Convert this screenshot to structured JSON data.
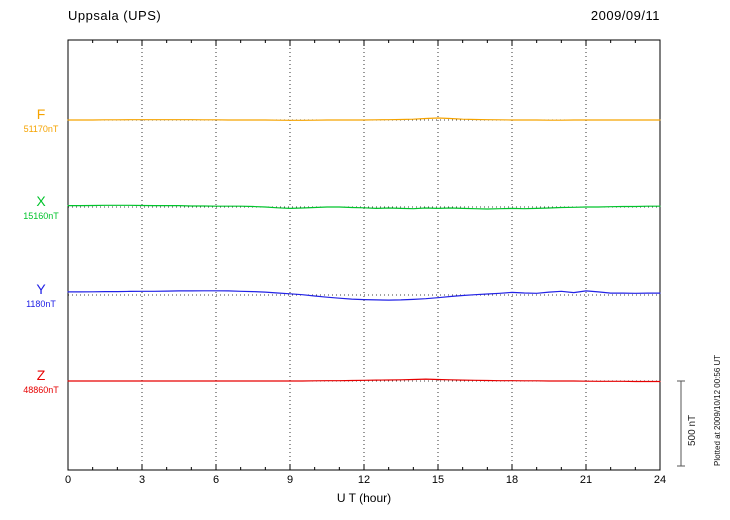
{
  "header": {
    "station": "Uppsala (UPS)",
    "date": "2009/09/11"
  },
  "xaxis": {
    "label": "U T (hour)",
    "ticks": [
      0,
      3,
      6,
      9,
      12,
      15,
      18,
      21,
      24
    ],
    "min": 0,
    "max": 24
  },
  "scale_bar": {
    "label": "500 nT",
    "nT": 500
  },
  "footer_note": "Plotted at 2009/10/12 00:56 UT",
  "chart_data": {
    "type": "line",
    "title": "Uppsala (UPS)",
    "date": "2009/09/11",
    "xlabel": "U T (hour)",
    "units": "nT deviation from channel baseline",
    "x_range": [
      0,
      24
    ],
    "grid": "dotted vertical lines every 3 hours; dotted horizontal baseline per channel",
    "x": [
      0,
      0.5,
      1,
      1.5,
      2,
      2.5,
      3,
      3.5,
      4,
      4.5,
      5,
      5.5,
      6,
      6.5,
      7,
      7.5,
      8,
      8.5,
      9,
      9.5,
      10,
      10.5,
      11,
      11.5,
      12,
      12.5,
      13,
      13.5,
      14,
      14.5,
      15,
      15.5,
      16,
      16.5,
      17,
      17.5,
      18,
      18.5,
      19,
      19.5,
      20,
      20.5,
      21,
      21.5,
      22,
      22.5,
      23,
      23.5,
      24
    ],
    "series": [
      {
        "name": "F",
        "baseline_label": "51170nT",
        "baseline_nT": 51170,
        "color": "#F5A300",
        "values": [
          0,
          0,
          0,
          1,
          1,
          2,
          2,
          2,
          2,
          2,
          2,
          1,
          1,
          0,
          0,
          0,
          0,
          -1,
          -2,
          -2,
          -1,
          0,
          0,
          0,
          0,
          1,
          2,
          3,
          5,
          9,
          12,
          9,
          5,
          3,
          2,
          1,
          0,
          0,
          0,
          -1,
          -1,
          0,
          0,
          0,
          0,
          0,
          0,
          0,
          0
        ]
      },
      {
        "name": "X",
        "baseline_label": "15160nT",
        "baseline_nT": 15160,
        "color": "#00C32B",
        "values": [
          8,
          8,
          9,
          10,
          10,
          10,
          9,
          8,
          8,
          8,
          6,
          6,
          5,
          5,
          5,
          3,
          0,
          -5,
          -8,
          -6,
          -3,
          0,
          0,
          -3,
          -5,
          -8,
          -6,
          -8,
          -10,
          -6,
          -8,
          -6,
          -8,
          -10,
          -12,
          -10,
          -8,
          -10,
          -8,
          -6,
          -3,
          -2,
          0,
          0,
          2,
          3,
          3,
          5,
          5
        ]
      },
      {
        "name": "Y",
        "baseline_label": "1180nT",
        "baseline_nT": 1180,
        "color": "#2222E6",
        "values": [
          18,
          18,
          19,
          20,
          20,
          21,
          22,
          22,
          23,
          24,
          24,
          25,
          25,
          24,
          22,
          20,
          17,
          12,
          7,
          2,
          -6,
          -13,
          -19,
          -24,
          -27,
          -29,
          -30,
          -29,
          -26,
          -22,
          -16,
          -9,
          -3,
          2,
          6,
          10,
          15,
          12,
          10,
          17,
          22,
          14,
          24,
          18,
          11,
          11,
          10,
          11,
          11
        ]
      },
      {
        "name": "Z",
        "baseline_label": "48860nT",
        "baseline_nT": 48860,
        "color": "#E60000",
        "values": [
          0,
          0,
          0,
          0,
          0,
          0,
          0,
          0,
          0,
          0,
          0,
          0,
          0,
          0,
          0,
          0,
          0,
          0,
          0,
          0,
          1,
          2,
          2,
          3,
          4,
          5,
          6,
          7,
          9,
          11,
          9,
          7,
          5,
          4,
          3,
          2,
          2,
          1,
          1,
          0,
          0,
          0,
          -1,
          -2,
          -2,
          -2,
          -3,
          -3,
          -3
        ]
      }
    ]
  }
}
